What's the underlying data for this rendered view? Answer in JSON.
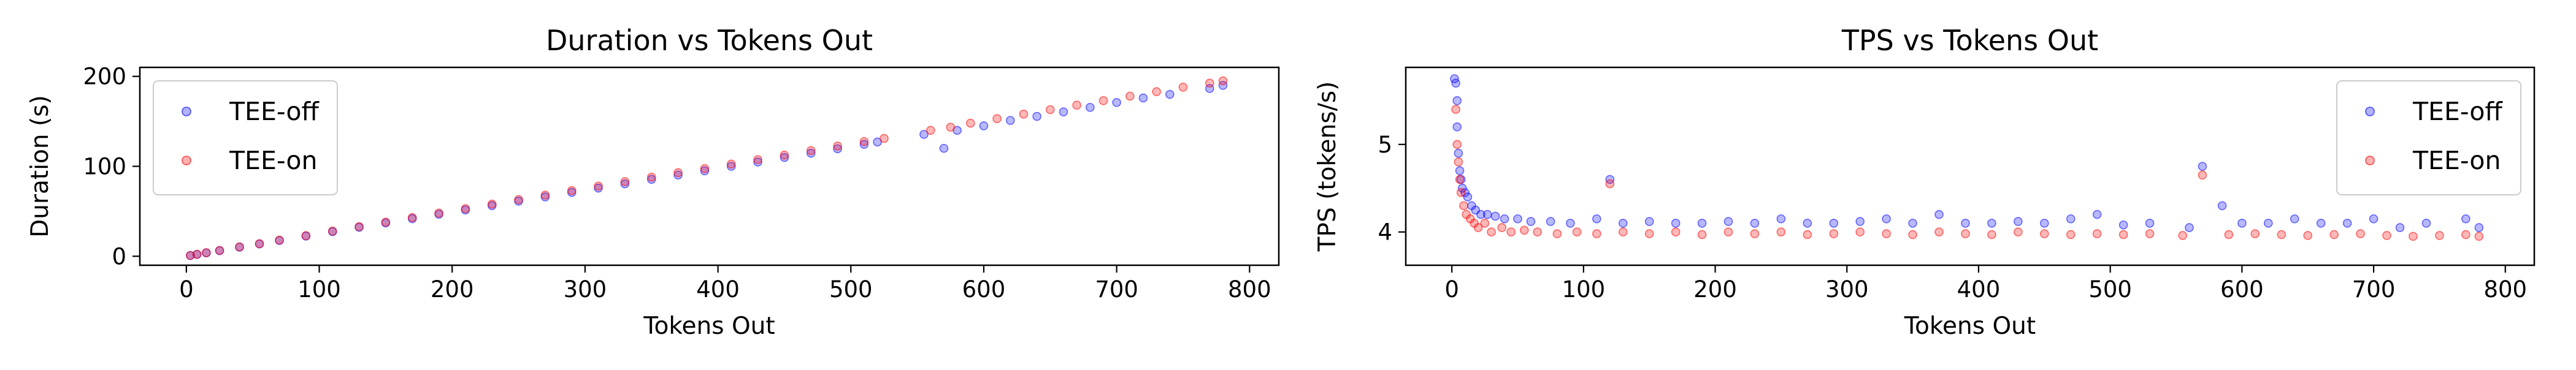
{
  "colors": {
    "tee_off": "#0000ff",
    "tee_on": "#ff0000"
  },
  "chart_data": [
    {
      "type": "scatter",
      "title": "Duration vs Tokens Out",
      "xlabel": "Tokens Out",
      "ylabel": "Duration (s)",
      "xlim": [
        -35,
        822
      ],
      "ylim": [
        -10,
        210
      ],
      "xticks": [
        0,
        100,
        200,
        300,
        400,
        500,
        600,
        700,
        800
      ],
      "yticks": [
        0,
        100,
        200
      ],
      "legend_position": "top-left",
      "series": [
        {
          "name": "TEE-off",
          "color": "#0000ff",
          "x": [
            3,
            8,
            15,
            25,
            40,
            55,
            70,
            90,
            110,
            130,
            150,
            170,
            190,
            210,
            230,
            250,
            270,
            290,
            310,
            330,
            350,
            370,
            390,
            410,
            430,
            450,
            470,
            490,
            510,
            520,
            555,
            570,
            580,
            600,
            620,
            640,
            660,
            680,
            700,
            720,
            740,
            770,
            780
          ],
          "y": [
            0.8,
            2,
            3.7,
            6.2,
            10,
            13.7,
            17.5,
            22.4,
            27.3,
            32.2,
            37,
            41.8,
            46.7,
            51.5,
            56.3,
            61.3,
            66,
            71,
            75.8,
            80.5,
            85.5,
            90.3,
            95,
            100,
            104.8,
            109.8,
            114.6,
            119.5,
            124.5,
            127,
            135.5,
            120,
            140,
            145,
            151,
            155.5,
            160.5,
            165.5,
            171,
            176,
            180,
            186.5,
            190
          ]
        },
        {
          "name": "TEE-on",
          "color": "#ff0000",
          "x": [
            3,
            8,
            15,
            25,
            40,
            55,
            70,
            90,
            110,
            130,
            150,
            170,
            190,
            210,
            230,
            250,
            270,
            290,
            310,
            330,
            350,
            370,
            390,
            410,
            430,
            450,
            470,
            490,
            510,
            525,
            560,
            575,
            590,
            610,
            630,
            650,
            670,
            690,
            710,
            730,
            750,
            770,
            780
          ],
          "y": [
            0.9,
            2.2,
            4,
            6.5,
            10.5,
            14,
            18,
            23,
            28,
            33,
            38,
            43,
            48,
            53,
            58,
            63,
            68,
            73,
            78,
            83,
            88,
            93,
            97.5,
            102.5,
            107.5,
            112.5,
            117.5,
            122.5,
            127.5,
            131,
            140,
            143.5,
            148,
            153,
            158,
            163,
            168,
            173,
            178,
            183,
            188,
            192.5,
            195
          ]
        }
      ]
    },
    {
      "type": "scatter",
      "title": "TPS vs Tokens Out",
      "xlabel": "Tokens Out",
      "ylabel": "TPS (tokens/s)",
      "xlim": [
        -35,
        822
      ],
      "ylim": [
        3.62,
        5.88
      ],
      "xticks": [
        0,
        100,
        200,
        300,
        400,
        500,
        600,
        700,
        800
      ],
      "yticks": [
        4,
        5
      ],
      "legend_position": "top-right",
      "series": [
        {
          "name": "TEE-off",
          "color": "#0000ff",
          "x": [
            2,
            3,
            4,
            4,
            5,
            6,
            7,
            8,
            10,
            12,
            15,
            18,
            22,
            27,
            33,
            40,
            50,
            60,
            75,
            90,
            110,
            120,
            130,
            150,
            170,
            190,
            210,
            230,
            250,
            270,
            290,
            310,
            330,
            350,
            370,
            390,
            410,
            430,
            450,
            470,
            490,
            510,
            530,
            560,
            570,
            585,
            600,
            620,
            640,
            660,
            680,
            700,
            720,
            740,
            770,
            780
          ],
          "y": [
            5.75,
            5.7,
            5.5,
            5.2,
            4.9,
            4.7,
            4.6,
            4.5,
            4.45,
            4.4,
            4.3,
            4.25,
            4.2,
            4.2,
            4.18,
            4.15,
            4.15,
            4.12,
            4.12,
            4.1,
            4.15,
            4.6,
            4.1,
            4.12,
            4.1,
            4.1,
            4.12,
            4.1,
            4.15,
            4.1,
            4.1,
            4.12,
            4.15,
            4.1,
            4.2,
            4.1,
            4.1,
            4.12,
            4.1,
            4.15,
            4.2,
            4.08,
            4.1,
            4.05,
            4.75,
            4.3,
            4.1,
            4.1,
            4.15,
            4.1,
            4.1,
            4.15,
            4.05,
            4.1,
            4.15,
            4.05
          ]
        },
        {
          "name": "TEE-on",
          "color": "#ff0000",
          "x": [
            3,
            4,
            5,
            6,
            7,
            9,
            11,
            14,
            17,
            20,
            25,
            30,
            38,
            45,
            55,
            65,
            80,
            95,
            110,
            120,
            130,
            150,
            170,
            190,
            210,
            230,
            250,
            270,
            290,
            310,
            330,
            350,
            370,
            390,
            410,
            430,
            450,
            470,
            490,
            510,
            530,
            555,
            570,
            590,
            610,
            630,
            650,
            670,
            690,
            710,
            730,
            750,
            770,
            780
          ],
          "y": [
            5.4,
            5.0,
            4.8,
            4.6,
            4.45,
            4.3,
            4.2,
            4.15,
            4.1,
            4.05,
            4.1,
            4.0,
            4.05,
            4.0,
            4.02,
            4.0,
            3.98,
            4.0,
            3.98,
            4.55,
            4.0,
            3.98,
            4.0,
            3.97,
            4.0,
            3.98,
            4.0,
            3.97,
            3.98,
            4.0,
            3.98,
            3.97,
            4.0,
            3.98,
            3.97,
            4.0,
            3.98,
            3.97,
            3.98,
            3.97,
            3.98,
            3.96,
            4.65,
            3.97,
            3.98,
            3.97,
            3.96,
            3.97,
            3.98,
            3.96,
            3.95,
            3.96,
            3.97,
            3.95
          ]
        }
      ]
    }
  ]
}
